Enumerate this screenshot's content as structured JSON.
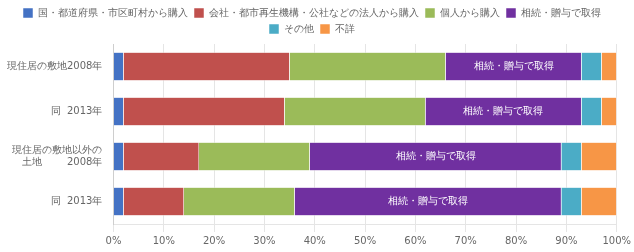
{
  "chart_data": {
    "type": "bar",
    "orientation": "horizontal",
    "stacked": true,
    "categories": [
      "現住居の敷地2008年",
      "同  2013年",
      "現住居の敷地以外の\n土地        2008年",
      "同  2013年"
    ],
    "series": [
      {
        "name": "国・都道府県・市区町村から購入",
        "color": "#4472c4",
        "values": [
          2,
          2,
          2,
          2
        ]
      },
      {
        "name": "会社・都市再生機構・公社などの法人から購入",
        "color": "#c0504d",
        "values": [
          33,
          32,
          15,
          12
        ]
      },
      {
        "name": "個人から購入",
        "color": "#9bbb59",
        "values": [
          31,
          28,
          22,
          22
        ]
      },
      {
        "name": "相続・贈与で取得",
        "color": "#7030a0",
        "values": [
          27,
          31,
          50,
          53
        ],
        "annotations": [
          "相続・贈与で取得",
          "相続・贈与で取得",
          "相続・贈与で取得",
          "相続・贈与で取得"
        ]
      },
      {
        "name": "その他",
        "color": "#4bacc6",
        "values": [
          4,
          4,
          4,
          4
        ]
      },
      {
        "name": "不詳",
        "color": "#f79646",
        "values": [
          3,
          3,
          7,
          7
        ]
      }
    ],
    "xlim": [
      0,
      100
    ],
    "xticks": [
      {
        "value": 0,
        "label": "0%"
      },
      {
        "value": 10,
        "label": "10%"
      },
      {
        "value": 20,
        "label": "20%"
      },
      {
        "value": 30,
        "label": "30%"
      },
      {
        "value": 40,
        "label": "40%"
      },
      {
        "value": 50,
        "label": "50%"
      },
      {
        "value": 60,
        "label": "60%"
      },
      {
        "value": 70,
        "label": "70%"
      },
      {
        "value": 80,
        "label": "80%"
      },
      {
        "value": 90,
        "label": "90%"
      },
      {
        "value": 100,
        "label": "100%"
      }
    ],
    "grid": true,
    "legend": "top"
  }
}
